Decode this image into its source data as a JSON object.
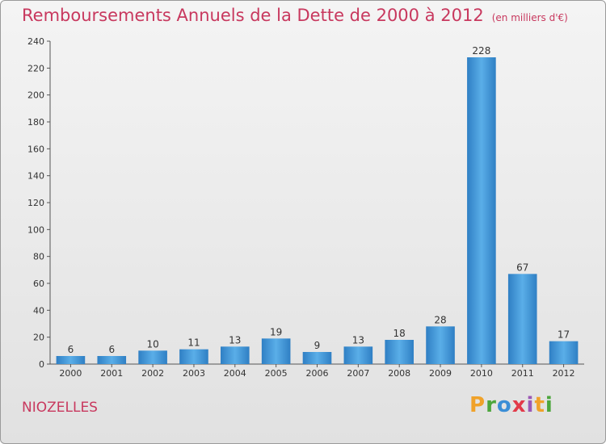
{
  "chart_data": {
    "type": "bar",
    "title": "Remboursements Annuels de la Dette de 2000 à 2012",
    "unit_note": "(en milliers d'€)",
    "categories": [
      "2000",
      "2001",
      "2002",
      "2003",
      "2004",
      "2005",
      "2006",
      "2007",
      "2008",
      "2009",
      "2010",
      "2011",
      "2012"
    ],
    "values": [
      6,
      6,
      10,
      11,
      13,
      19,
      9,
      13,
      18,
      28,
      228,
      67,
      17
    ],
    "ylim": [
      0,
      240
    ],
    "yticks": [
      0,
      20,
      40,
      60,
      80,
      100,
      120,
      140,
      160,
      180,
      200,
      220,
      240
    ],
    "xlabel": "",
    "ylabel": "",
    "grid": false,
    "bar_color": "#3d92d6"
  },
  "footer": {
    "commune": "NIOZELLES",
    "logo_letters": [
      "P",
      "r",
      "o",
      "x",
      "i",
      "t",
      "i"
    ]
  }
}
